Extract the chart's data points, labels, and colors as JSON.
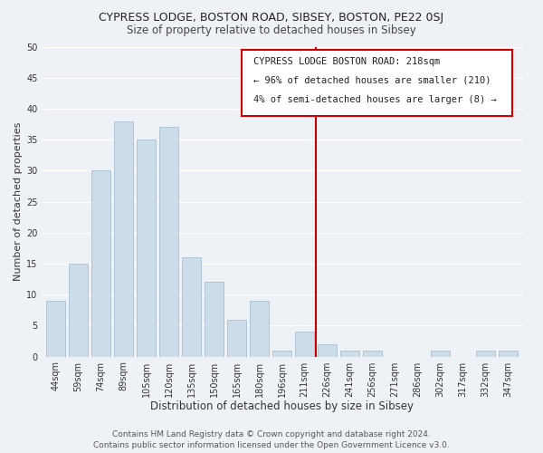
{
  "title": "CYPRESS LODGE, BOSTON ROAD, SIBSEY, BOSTON, PE22 0SJ",
  "subtitle": "Size of property relative to detached houses in Sibsey",
  "xlabel": "Distribution of detached houses by size in Sibsey",
  "ylabel": "Number of detached properties",
  "bar_labels": [
    "44sqm",
    "59sqm",
    "74sqm",
    "89sqm",
    "105sqm",
    "120sqm",
    "135sqm",
    "150sqm",
    "165sqm",
    "180sqm",
    "196sqm",
    "211sqm",
    "226sqm",
    "241sqm",
    "256sqm",
    "271sqm",
    "286sqm",
    "302sqm",
    "317sqm",
    "332sqm",
    "347sqm"
  ],
  "bar_values": [
    9,
    15,
    30,
    38,
    35,
    37,
    16,
    12,
    6,
    9,
    1,
    4,
    2,
    1,
    1,
    0,
    0,
    1,
    0,
    1,
    1
  ],
  "bar_color": "#ccdce8",
  "bar_edgecolor": "#a8c0d4",
  "vline_x": 11.5,
  "vline_color": "#cc0000",
  "ylim": [
    0,
    50
  ],
  "yticks": [
    0,
    5,
    10,
    15,
    20,
    25,
    30,
    35,
    40,
    45,
    50
  ],
  "annotation_title": "CYPRESS LODGE BOSTON ROAD: 218sqm",
  "annotation_line1": "← 96% of detached houses are smaller (210)",
  "annotation_line2": "4% of semi-detached houses are larger (8) →",
  "annotation_box_color": "#ffffff",
  "annotation_box_edgecolor": "#cc0000",
  "footer1": "Contains HM Land Registry data © Crown copyright and database right 2024.",
  "footer2": "Contains public sector information licensed under the Open Government Licence v3.0.",
  "background_color": "#eef2f6",
  "plot_background_color": "#eef2f6",
  "grid_color": "#ffffff",
  "title_fontsize": 9,
  "subtitle_fontsize": 8.5,
  "xlabel_fontsize": 8.5,
  "ylabel_fontsize": 8,
  "tick_fontsize": 7,
  "annotation_fontsize": 7.5,
  "footer_fontsize": 6.5
}
